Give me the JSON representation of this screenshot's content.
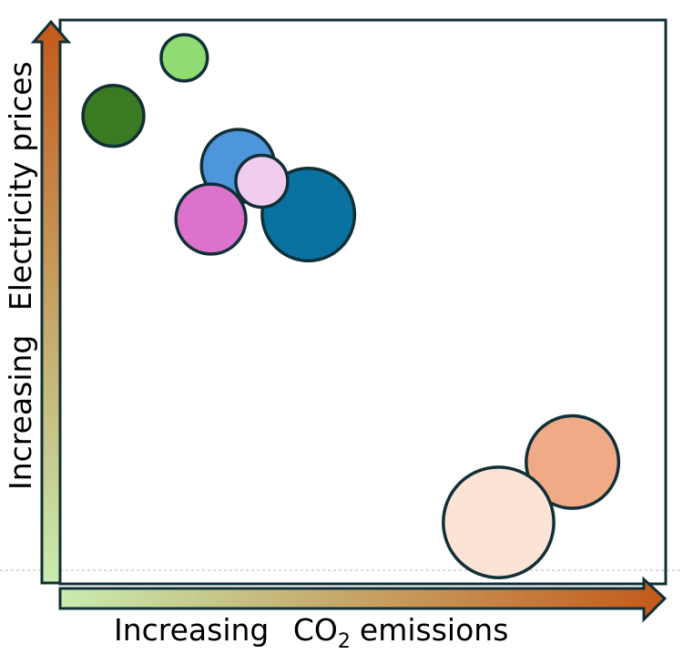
{
  "chart_data": {
    "type": "bubble",
    "title": "",
    "xlabel_prefix": "Increasing",
    "xlabel_main": "CO",
    "xlabel_sub": "2",
    "xlabel_suffix": "emissions",
    "ylabel_prefix": "Increasing",
    "ylabel_main": "Electricity prices",
    "xlim": [
      0,
      100
    ],
    "ylim": [
      0,
      100
    ],
    "grid": false,
    "legend": "none",
    "points": [
      {
        "x": 20.5,
        "y": 93.3,
        "size": 4.1,
        "color": "#8fdc72"
      },
      {
        "x": 8.8,
        "y": 83.0,
        "size": 5.4,
        "color": "#3a7a22"
      },
      {
        "x": 29.4,
        "y": 74.1,
        "size": 6.5,
        "color": "#4e96dc"
      },
      {
        "x": 24.9,
        "y": 64.7,
        "size": 6.2,
        "color": "#dc72cb"
      },
      {
        "x": 41.0,
        "y": 65.5,
        "size": 8.2,
        "color": "#0a72a0"
      },
      {
        "x": 33.3,
        "y": 71.4,
        "size": 4.6,
        "color": "#f0cdee"
      },
      {
        "x": 84.6,
        "y": 21.6,
        "size": 8.2,
        "color": "#f0aa86"
      },
      {
        "x": 72.4,
        "y": 10.9,
        "size": 9.8,
        "color": "#fbe3d6"
      }
    ],
    "colors": {
      "frame": "#102f36",
      "arrow_start": "#c8ecb0",
      "arrow_end": "#c4591a",
      "bubble_stroke": "#102f36",
      "baseline": "#b9b9b9"
    }
  }
}
